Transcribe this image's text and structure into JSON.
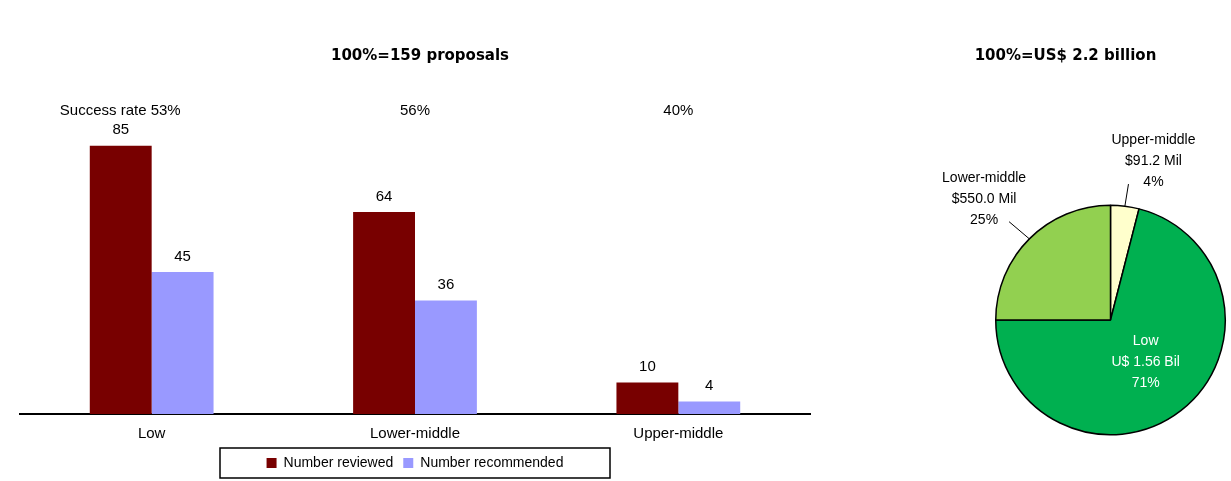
{
  "chart_data": [
    {
      "type": "bar",
      "title": "100%=159 proposals",
      "categories": [
        "Low",
        "Lower-middle",
        "Upper-middle"
      ],
      "series": [
        {
          "name": "Number reviewed",
          "color": "#780000",
          "values": [
            85,
            64,
            10
          ]
        },
        {
          "name": "Number recommended",
          "color": "#9999ff",
          "values": [
            45,
            36,
            4
          ]
        }
      ],
      "data_labels": true,
      "legend": "bottom",
      "grid": false,
      "tick_labels": "x",
      "annotations": [
        "Success rate 53%",
        "56%",
        "40%"
      ]
    },
    {
      "type": "pie",
      "title": "100%=US$ 2.2 billion",
      "categories": [
        "Upper-middle",
        "Low",
        "Lower-middle"
      ],
      "values": [
        4,
        71,
        25
      ],
      "colors": [
        "#ffffcc",
        "#00b050",
        "#92d050"
      ],
      "value_labels": [
        "$91.2 Mil\n4%",
        "U$ 1.56 Bil\n71%",
        "$550.0 Mil\n25%"
      ],
      "legend": false
    }
  ]
}
